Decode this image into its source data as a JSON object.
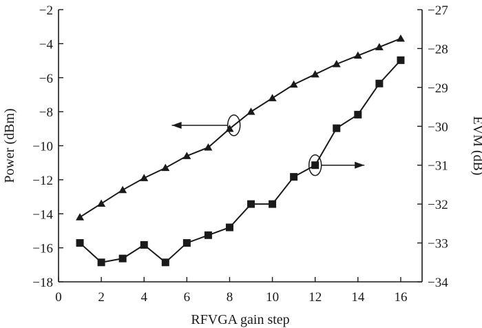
{
  "chart_data": {
    "type": "line",
    "xlabel": "RFVGA gain step",
    "ylabel_left": "Power (dBm)",
    "ylabel_right": "EVM (dB)",
    "xlim": [
      0,
      17
    ],
    "ylim_left": [
      -18,
      -2
    ],
    "ylim_right": [
      -34,
      -27
    ],
    "x_ticks": [
      0,
      2,
      4,
      6,
      8,
      10,
      12,
      14,
      16
    ],
    "y_left_ticks": [
      -18,
      -16,
      -14,
      -12,
      -10,
      -8,
      -6,
      -4,
      -2
    ],
    "y_right_ticks": [
      -34,
      -33,
      -32,
      -31,
      -30,
      -29,
      -28,
      -27
    ],
    "grid": false,
    "x": [
      1,
      2,
      3,
      4,
      5,
      6,
      7,
      8,
      9,
      10,
      11,
      12,
      13,
      14,
      15,
      16
    ],
    "series": [
      {
        "axis": "left",
        "marker": "triangle",
        "color": "#1a1a1a",
        "values": [
          -14.2,
          -13.4,
          -12.6,
          -11.9,
          -11.3,
          -10.6,
          -10.1,
          -9.0,
          -8.0,
          -7.2,
          -6.4,
          -5.8,
          -5.2,
          -4.7,
          -4.2,
          -3.7
        ]
      },
      {
        "axis": "right",
        "marker": "square",
        "color": "#1a1a1a",
        "values": [
          -33.0,
          -33.5,
          -33.4,
          -33.05,
          -33.5,
          -33.0,
          -32.8,
          -32.6,
          -32.0,
          -32.0,
          -31.3,
          -31.0,
          -30.05,
          -29.7,
          -28.9,
          -28.3
        ]
      }
    ],
    "annotations": [
      {
        "type": "arrow-left",
        "series_index": 0,
        "at_x": 8.2,
        "to_x": 5.3
      },
      {
        "type": "arrow-right",
        "series_index": 1,
        "at_x": 12.0,
        "to_x": 14.3
      }
    ]
  }
}
